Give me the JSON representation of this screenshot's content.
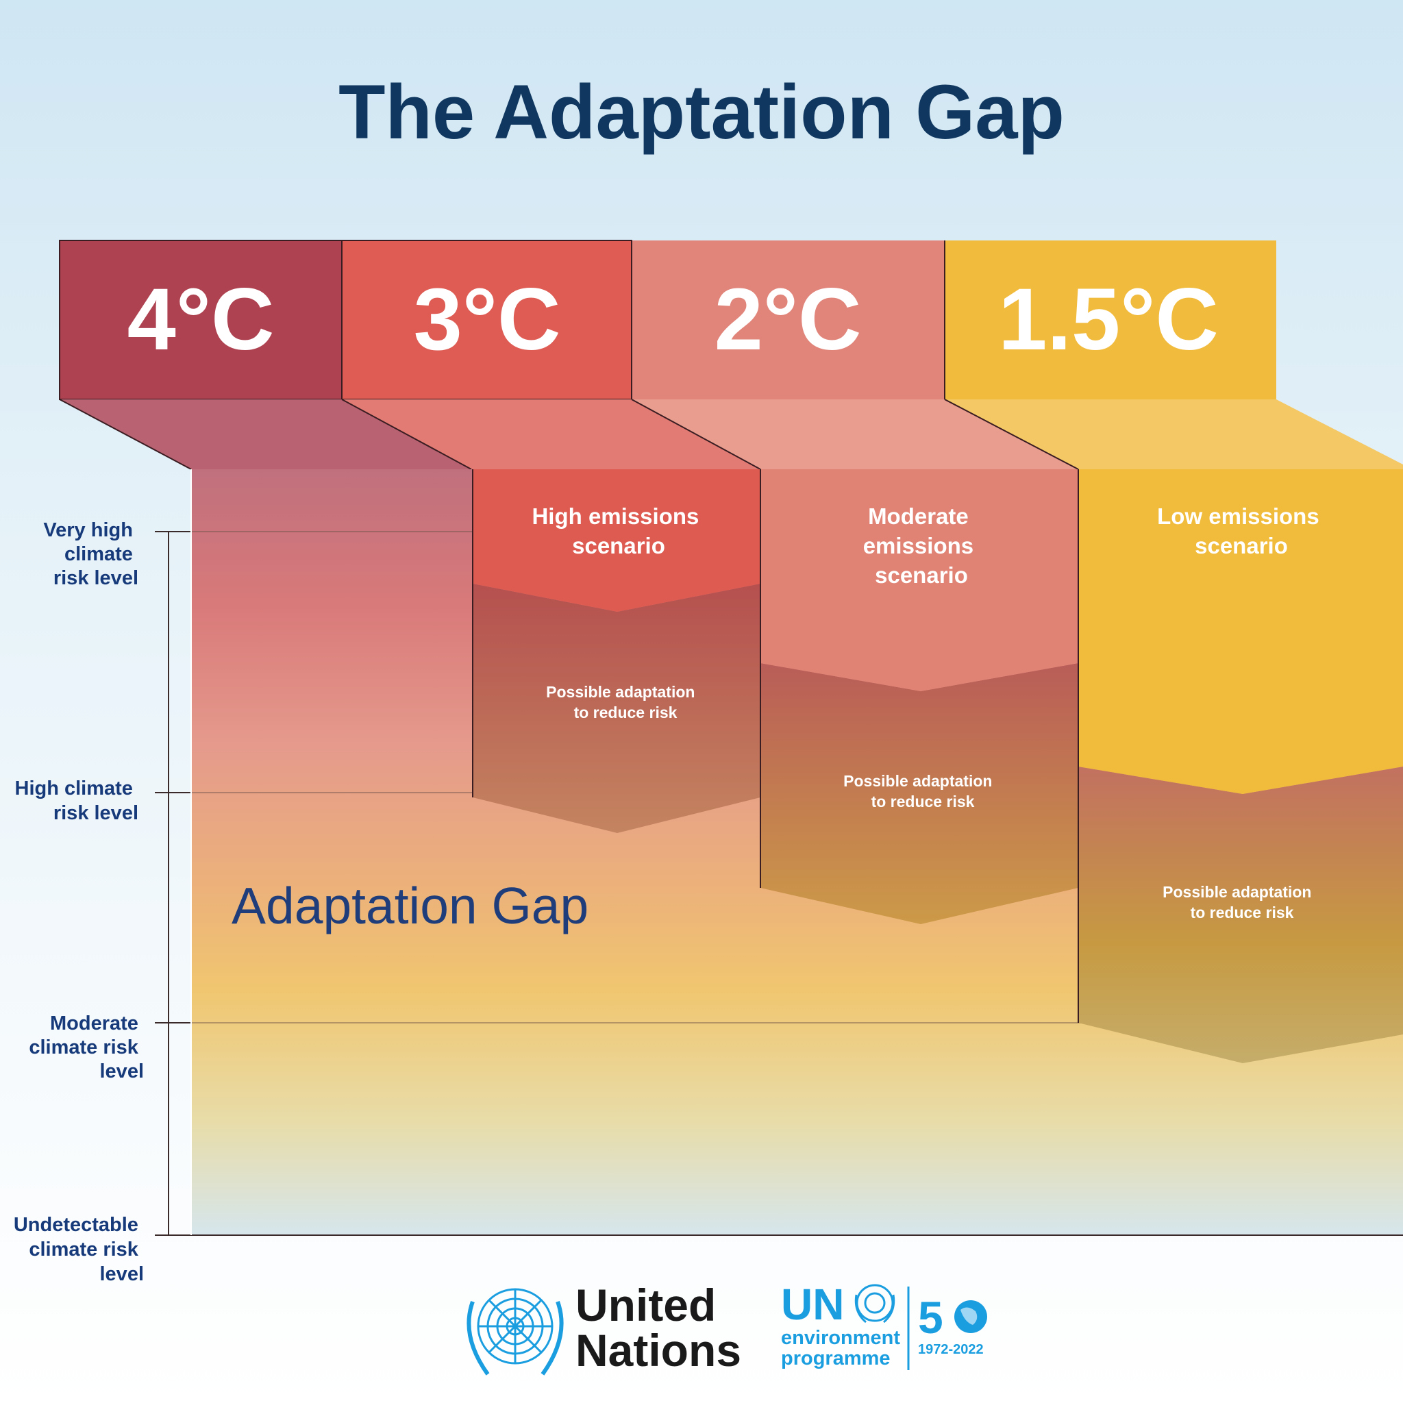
{
  "title": "The Adaptation Gap",
  "temperatures": [
    {
      "label": "4°C",
      "color": "#ae4251"
    },
    {
      "label": "3°C",
      "color": "#de5c54"
    },
    {
      "label": "2°C",
      "color": "#e1847a"
    },
    {
      "label": "1.5°C",
      "color": "#f1bb3e"
    }
  ],
  "scenarios": [
    {
      "lines": [
        "High emissions",
        "scenario"
      ],
      "color": "#de5b52"
    },
    {
      "lines": [
        "Moderate",
        "emissions",
        "scenario"
      ],
      "color": "#e08375"
    },
    {
      "lines": [
        "Low emissions",
        "scenario"
      ],
      "color": "#f1bb3b"
    }
  ],
  "adaptation_label": [
    "Possible adaptation",
    "to reduce risk"
  ],
  "gap_label": "Adaptation Gap",
  "risk_levels": [
    {
      "lines": [
        "Very high",
        "climate",
        "risk level"
      ]
    },
    {
      "lines": [
        "High climate",
        "risk level"
      ]
    },
    {
      "lines": [
        "Moderate",
        "climate risk",
        "level"
      ]
    },
    {
      "lines": [
        "Undetectable",
        "climate risk",
        "level"
      ]
    }
  ],
  "logos": {
    "united_nations": [
      "United",
      "Nations"
    ],
    "unep_big": "UN",
    "unep_small": [
      "environment",
      "programme"
    ],
    "anniversary_number": "5",
    "anniversary_years": "1972-2022"
  },
  "colors": {
    "title": "#10375f",
    "risk_labels": "#173a7a",
    "un_blue": "#1b9ee0"
  }
}
